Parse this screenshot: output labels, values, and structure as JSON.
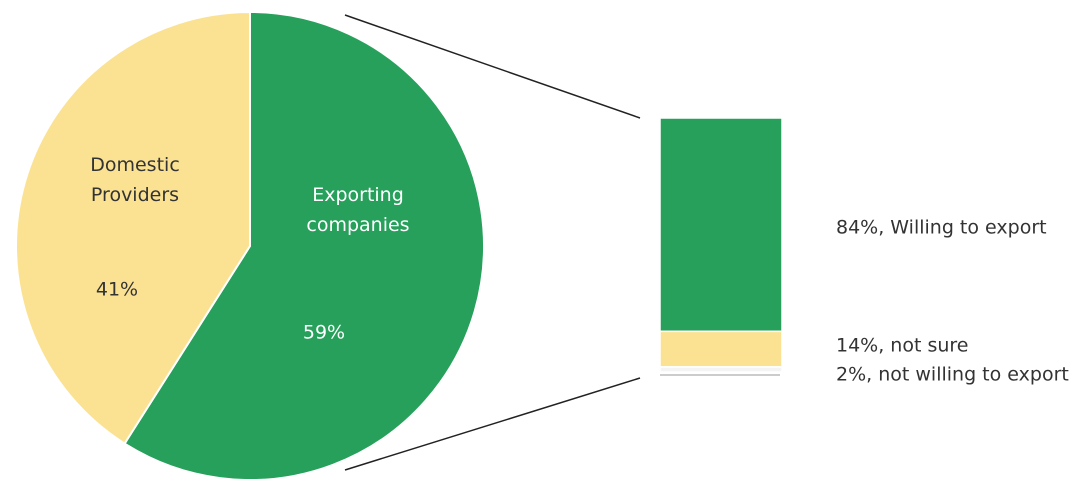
{
  "chart_data": [
    {
      "type": "pie",
      "categories": [
        "Domestic Providers",
        "Exporting companies"
      ],
      "values": [
        41,
        59
      ],
      "value_labels": [
        "41%",
        "59%"
      ],
      "colors": [
        "#fbe293",
        "#26a05a"
      ],
      "label_colors": [
        "#333333",
        "#ffffff"
      ]
    },
    {
      "type": "stacked-bar",
      "segments": [
        {
          "values": [
            84
          ],
          "value_labels": [
            "84%, Willing to export"
          ],
          "color": "#26a05a"
        },
        {
          "values": [
            14
          ],
          "value_labels": [
            "14%, not sure"
          ],
          "color": "#fbe293"
        },
        {
          "values": [
            2
          ],
          "value_labels": [
            "2%, not willing to export"
          ],
          "color": "#f4f4f4"
        }
      ]
    }
  ]
}
